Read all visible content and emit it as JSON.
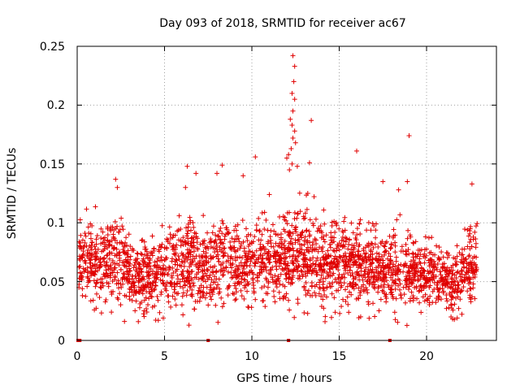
{
  "chart_data": {
    "type": "scatter",
    "title": "Day 093 of 2018, SRMTID for receiver ac67",
    "xlabel": "GPS time / hours",
    "ylabel": "SRMTID / TECUs",
    "xlim": [
      0,
      24
    ],
    "ylim": [
      0,
      0.25
    ],
    "xticks": [
      0,
      5,
      10,
      15,
      20
    ],
    "xtick_labels": [
      "0",
      "5",
      "10",
      "15",
      "20"
    ],
    "yticks": [
      0,
      0.05,
      0.1,
      0.15,
      0.2,
      0.25
    ],
    "ytick_labels": [
      "0",
      "0.05",
      "0.1",
      "0.15",
      "0.2",
      "0.25"
    ],
    "grid": true,
    "marker": "plus",
    "color": "#e00000",
    "series": [
      {
        "name": "SRMTID",
        "approx_points": 2600,
        "x_range": [
          0.1,
          22.9
        ],
        "profile_note": "hourly mean / spread estimated from scatter density",
        "hours": [
          0.5,
          1.5,
          2.5,
          3.5,
          4.5,
          5.5,
          6.5,
          7.5,
          8.5,
          9.5,
          10.5,
          11.5,
          12.5,
          13.5,
          14.5,
          15.5,
          16.5,
          17.5,
          18.5,
          19.5,
          20.5,
          21.5,
          22.5
        ],
        "mean": [
          0.068,
          0.067,
          0.066,
          0.052,
          0.055,
          0.062,
          0.07,
          0.06,
          0.068,
          0.064,
          0.068,
          0.068,
          0.075,
          0.07,
          0.065,
          0.066,
          0.064,
          0.062,
          0.058,
          0.056,
          0.058,
          0.047,
          0.065
        ],
        "spread": [
          0.018,
          0.018,
          0.02,
          0.018,
          0.017,
          0.019,
          0.022,
          0.019,
          0.021,
          0.02,
          0.02,
          0.019,
          0.025,
          0.022,
          0.02,
          0.02,
          0.019,
          0.019,
          0.019,
          0.018,
          0.017,
          0.015,
          0.02
        ],
        "outliers": [
          [
            12.35,
            0.242
          ],
          [
            12.45,
            0.233
          ],
          [
            12.4,
            0.22
          ],
          [
            12.3,
            0.21
          ],
          [
            12.45,
            0.205
          ],
          [
            12.35,
            0.195
          ],
          [
            12.2,
            0.188
          ],
          [
            12.3,
            0.183
          ],
          [
            12.45,
            0.178
          ],
          [
            12.35,
            0.172
          ],
          [
            12.5,
            0.168
          ],
          [
            12.25,
            0.163
          ],
          [
            12.1,
            0.158
          ],
          [
            12.0,
            0.155
          ],
          [
            12.3,
            0.15
          ],
          [
            12.15,
            0.145
          ],
          [
            13.4,
            0.187
          ],
          [
            13.3,
            0.151
          ],
          [
            19.0,
            0.174
          ],
          [
            16.0,
            0.161
          ],
          [
            10.2,
            0.156
          ],
          [
            8.3,
            0.149
          ],
          [
            6.3,
            0.148
          ],
          [
            2.2,
            0.137
          ],
          [
            2.3,
            0.13
          ],
          [
            8.0,
            0.142
          ],
          [
            9.5,
            0.14
          ],
          [
            6.8,
            0.142
          ],
          [
            17.5,
            0.135
          ],
          [
            18.9,
            0.135
          ],
          [
            22.6,
            0.133
          ],
          [
            18.4,
            0.128
          ],
          [
            11.0,
            0.124
          ],
          [
            6.2,
            0.13
          ],
          [
            12.6,
            0.148
          ],
          [
            13.2,
            0.125
          ],
          [
            0.1,
            0.045
          ],
          [
            6.4,
            0.013
          ],
          [
            3.5,
            0.016
          ],
          [
            21.4,
            0.02
          ]
        ]
      },
      {
        "name": "gaps",
        "note": "short red markers along the zero line",
        "x": [
          0.05,
          0.15,
          7.5,
          12.1,
          17.9
        ]
      }
    ]
  }
}
